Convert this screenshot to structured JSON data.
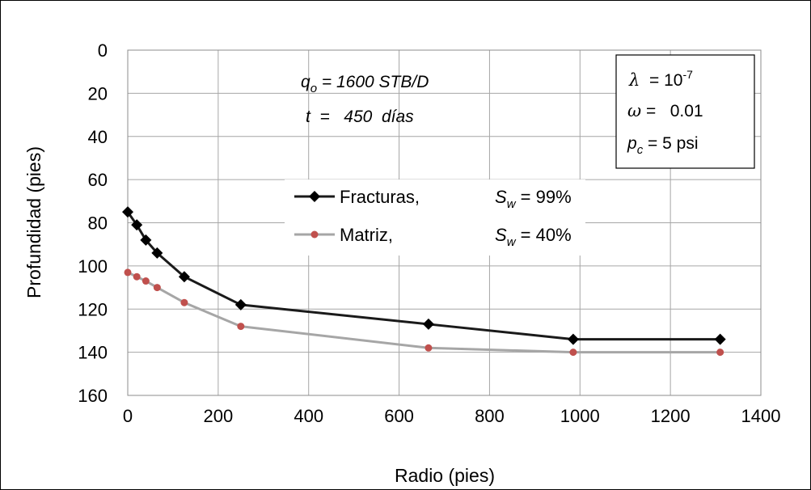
{
  "chart_data": {
    "type": "line",
    "xlabel": "Radio (pies)",
    "ylabel": "Profundidad (pies)",
    "xlim": [
      0,
      1400
    ],
    "ylim": [
      0,
      160
    ],
    "y_inverted": true,
    "x_ticks": [
      0,
      200,
      400,
      600,
      800,
      1000,
      1200,
      1400
    ],
    "y_ticks": [
      0,
      20,
      40,
      60,
      80,
      100,
      120,
      140,
      160
    ],
    "grid": true,
    "legend_position": "center-left",
    "series": [
      {
        "name": "Fracturas,",
        "saturation_label": "S",
        "saturation_sub": "w",
        "saturation_value": " = 99%",
        "color": "#1a1a1a",
        "marker": "diamond",
        "x": [
          0,
          20,
          40,
          65,
          125,
          250,
          665,
          985,
          1310
        ],
        "y": [
          75,
          81,
          88,
          94,
          105,
          118,
          127,
          134,
          134
        ]
      },
      {
        "name": "Matriz,",
        "saturation_label": "S",
        "saturation_sub": "w",
        "saturation_value": " = 40%",
        "color": "#a6a6a6",
        "marker_color": "#c0504d",
        "marker": "circle",
        "x": [
          0,
          20,
          40,
          65,
          125,
          250,
          665,
          985,
          1310
        ],
        "y": [
          103,
          105,
          107,
          110,
          117,
          128,
          138,
          140,
          140
        ]
      }
    ],
    "annotations": {
      "rate": {
        "symbol": "q",
        "sub": "o",
        "text": " = 1600 STB/D"
      },
      "time": {
        "symbol": "t",
        "text": "  =   450  días"
      },
      "params_box": {
        "lambda": {
          "symbol": "λ",
          "text": "  = 10",
          "sup": "-7"
        },
        "omega": {
          "symbol": "ω",
          "text": " =   0.01"
        },
        "pc": {
          "symbol": "p",
          "sub": "c",
          "text": " = 5 psi"
        }
      }
    }
  }
}
